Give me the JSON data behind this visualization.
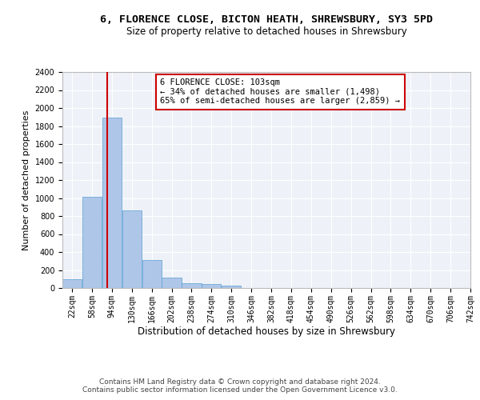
{
  "title": "6, FLORENCE CLOSE, BICTON HEATH, SHREWSBURY, SY3 5PD",
  "subtitle": "Size of property relative to detached houses in Shrewsbury",
  "xlabel": "Distribution of detached houses by size in Shrewsbury",
  "ylabel": "Number of detached properties",
  "bar_color": "#aec6e8",
  "bar_edge_color": "#5a9fd4",
  "background_color": "#eef2f8",
  "grid_color": "#ffffff",
  "annotation_line1": "6 FLORENCE CLOSE: 103sqm",
  "annotation_line2": "← 34% of detached houses are smaller (1,498)",
  "annotation_line3": "65% of semi-detached houses are larger (2,859) →",
  "annotation_box_edge_color": "#cc0000",
  "vline_x": 103,
  "vline_color": "#cc0000",
  "property_size": 103,
  "categories": [
    "22sqm",
    "58sqm",
    "94sqm",
    "130sqm",
    "166sqm",
    "202sqm",
    "238sqm",
    "274sqm",
    "310sqm",
    "346sqm",
    "382sqm",
    "418sqm",
    "454sqm",
    "490sqm",
    "526sqm",
    "562sqm",
    "598sqm",
    "634sqm",
    "670sqm",
    "706sqm",
    "742sqm"
  ],
  "bin_edges": [
    22,
    58,
    94,
    130,
    166,
    202,
    238,
    274,
    310,
    346,
    382,
    418,
    454,
    490,
    526,
    562,
    598,
    634,
    670,
    706,
    742
  ],
  "bin_width": 36,
  "values": [
    95,
    1010,
    1890,
    860,
    315,
    120,
    55,
    48,
    25,
    0,
    0,
    0,
    0,
    0,
    0,
    0,
    0,
    0,
    0,
    0,
    0
  ],
  "ylim": [
    0,
    2400
  ],
  "yticks": [
    0,
    200,
    400,
    600,
    800,
    1000,
    1200,
    1400,
    1600,
    1800,
    2000,
    2200,
    2400
  ],
  "footer_line1": "Contains HM Land Registry data © Crown copyright and database right 2024.",
  "footer_line2": "Contains public sector information licensed under the Open Government Licence v3.0.",
  "title_fontsize": 9.5,
  "subtitle_fontsize": 8.5,
  "xlabel_fontsize": 8.5,
  "ylabel_fontsize": 8,
  "tick_fontsize": 7,
  "footer_fontsize": 6.5,
  "annot_fontsize": 7.5
}
